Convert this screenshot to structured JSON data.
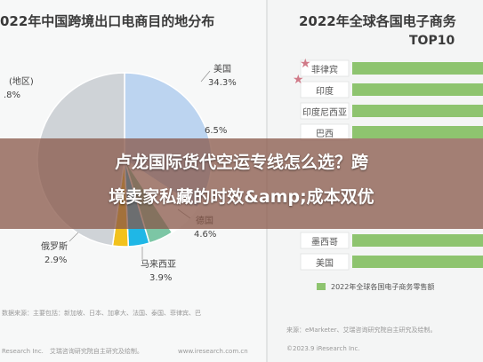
{
  "left_title": "022年中国跨境出口电商目的地分布",
  "right_title": "2022年全球各国电子商务",
  "right_subtitle": "TOP10",
  "pie_labels": {
    "top_left_line1": "(地区)",
    "top_left_line2": ".8%",
    "usa_name": "美国",
    "usa_value": "34.3%",
    "uk_value": "6.5%",
    "germany_name": "德国",
    "germany_value": "4.6%",
    "russia_name": "俄罗斯",
    "russia_value": "2.9%",
    "malaysia_name": "马来西亚",
    "malaysia_value": "3.9%"
  },
  "countries": [
    "菲律宾",
    "印度",
    "印度尼西亚",
    "巴西",
    "墨西哥",
    "美国"
  ],
  "legend": "2022年全球各国电子商务零售额",
  "left_source_line1": "数据来源：主要包括：新加坡、日本、加拿大、法国、泰国、菲律宾、巴",
  "left_source_line2": "Research Inc.　艾瑞咨询研究院自主研究及绘制。",
  "left_source_url": "www.iresearch.com.cn",
  "right_source_line1": "来源：eMarketer、艾瑞咨询研究院自主研究及绘制。",
  "right_source_line2": "©2023.9 iResearch Inc.",
  "headline_line1": "卢龙国际货代空运专线怎么选？跨",
  "headline_line2": "境卖家私藏的时效&amp;成本双优",
  "colors": {
    "usa": "#bcd4f0",
    "bar": "#8ec46f",
    "bar_box": "#ffffff",
    "malaysia": "#1fb7e6",
    "germany": "#7cc6a5",
    "russia": "#f2c21d",
    "gray": "#cfd3d7",
    "overlay": "#875546"
  },
  "chart_data": [
    {
      "type": "pie",
      "title": "022年中国跨境出口电商目的地分布",
      "slices": [
        {
          "label": "美国",
          "value": 34.3
        },
        {
          "label": "6.5%",
          "value": 6.5
        },
        {
          "label": "德国",
          "value": 4.6
        },
        {
          "label": "马来西亚",
          "value": 3.9
        },
        {
          "label": "俄罗斯",
          "value": 2.9
        },
        {
          "label": "(地区)",
          "value": 47.8
        }
      ]
    },
    {
      "type": "bar",
      "title": "2022年全球各国电子商务",
      "subtitle": "TOP10",
      "orientation": "horizontal",
      "categories": [
        "菲律宾",
        "印度",
        "印度尼西亚",
        "巴西",
        "墨西哥",
        "美国"
      ],
      "legend": [
        "2022年全球各国电子商务零售额"
      ]
    }
  ]
}
